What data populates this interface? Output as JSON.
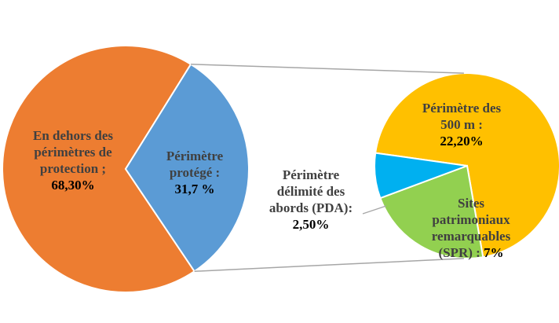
{
  "chart_data": {
    "type": "pie",
    "style": "bar-of-pie",
    "main_pie": {
      "slices": [
        {
          "label": [
            "En dehors des",
            "périmètres de",
            "protection ;"
          ],
          "value_label": "68,30%",
          "value": 68.3,
          "color": "#ED7D31"
        },
        {
          "label": [
            "Périmètre",
            "protégé :"
          ],
          "value_label": "31,7 %",
          "value": 31.7,
          "color": "#5B9BD5"
        }
      ]
    },
    "secondary_pie": {
      "slices": [
        {
          "label": [
            "Périmètre des",
            "500 m :"
          ],
          "value_label": "22,20%",
          "value": 22.2,
          "color": "#FFC000"
        },
        {
          "label": [
            "Sites",
            "patrimoniaux",
            "remarquables",
            "(SPR) :"
          ],
          "value_label": "7%",
          "value": 7.0,
          "color": "#92D050"
        },
        {
          "label": [
            "Périmètre",
            "délimité des",
            "abords (PDA):"
          ],
          "value_label": "2,50%",
          "value": 2.5,
          "color": "#00B0F0"
        }
      ]
    },
    "connector_color": "#A6A6A6"
  }
}
